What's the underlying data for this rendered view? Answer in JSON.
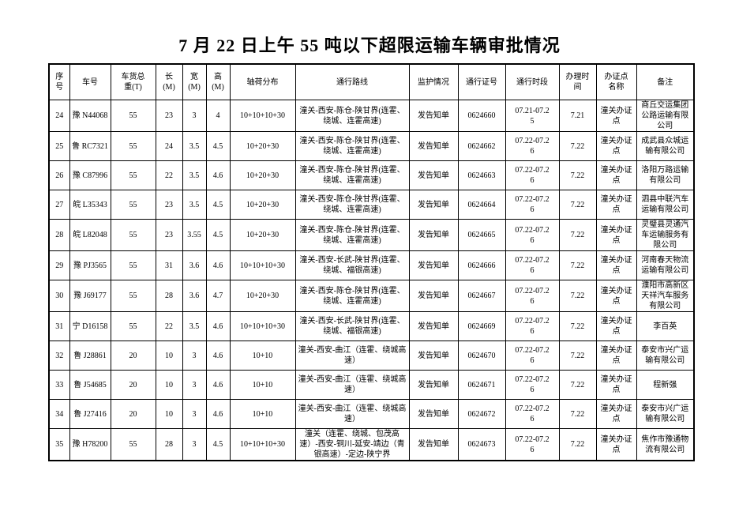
{
  "title": "7 月 22 日上午 55 吨以下超限运输车辆审批情况",
  "table": {
    "headers": [
      "序\n号",
      "车号",
      "车货总\n重(T)",
      "长\n(M)",
      "宽\n(M)",
      "高\n(M)",
      "轴荷分布",
      "通行路线",
      "监护情况",
      "通行证号",
      "通行时段",
      "办理时\n间",
      "办证点\n名称",
      "备注"
    ],
    "rows": [
      [
        "24",
        "豫 N44068",
        "55",
        "23",
        "3",
        "4",
        "10+10+10+30",
        "潼关-西安-陈仓-陕甘界(连霍、绕城、连霍高速)",
        "发告知单",
        "0624660",
        "07.21-07.25",
        "7.21",
        "潼关办证点",
        "商丘交运集团公路运输有限公司"
      ],
      [
        "25",
        "鲁 RC7321",
        "55",
        "24",
        "3.5",
        "4.5",
        "10+20+30",
        "潼关-西安-陈仓-陕甘界(连霍、绕城、连霍高速)",
        "发告知单",
        "0624662",
        "07.22-07.26",
        "7.22",
        "潼关办证点",
        "成武县众城运输有限公司"
      ],
      [
        "26",
        "豫 C87996",
        "55",
        "22",
        "3.5",
        "4.6",
        "10+20+30",
        "潼关-西安-陈仓-陕甘界(连霍、绕城、连霍高速)",
        "发告知单",
        "0624663",
        "07.22-07.26",
        "7.22",
        "潼关办证点",
        "洛阳万路运输有限公司"
      ],
      [
        "27",
        "皖 L35343",
        "55",
        "23",
        "3.5",
        "4.5",
        "10+20+30",
        "潼关-西安-陈仓-陕甘界(连霍、绕城、连霍高速)",
        "发告知单",
        "0624664",
        "07.22-07.26",
        "7.22",
        "潼关办证点",
        "泗县中联汽车运输有限公司"
      ],
      [
        "28",
        "皖 L82048",
        "55",
        "23",
        "3.55",
        "4.5",
        "10+20+30",
        "潼关-西安-陈仓-陕甘界(连霍、绕城、连霍高速)",
        "发告知单",
        "0624665",
        "07.22-07.26",
        "7.22",
        "潼关办证点",
        "灵璧县灵通汽车运输服务有限公司"
      ],
      [
        "29",
        "豫 PJ3565",
        "55",
        "31",
        "3.6",
        "4.6",
        "10+10+10+30",
        "潼关-西安-长武-陕甘界(连霍、绕城、福银高速)",
        "发告知单",
        "0624666",
        "07.22-07.26",
        "7.22",
        "潼关办证点",
        "河南春天物流运输有限公司"
      ],
      [
        "30",
        "豫 J69177",
        "55",
        "28",
        "3.6",
        "4.7",
        "10+20+30",
        "潼关-西安-陈仓-陕甘界(连霍、绕城、连霍高速)",
        "发告知单",
        "0624667",
        "07.22-07.26",
        "7.22",
        "潼关办证点",
        "濮阳市高新区天祥汽车服务有限公司"
      ],
      [
        "31",
        "宁 D16158",
        "55",
        "22",
        "3.5",
        "4.6",
        "10+10+10+30",
        "潼关-西安-长武-陕甘界(连霍、绕城、福银高速)",
        "发告知单",
        "0624669",
        "07.22-07.26",
        "7.22",
        "潼关办证点",
        "李百英"
      ],
      [
        "32",
        "鲁 J28861",
        "20",
        "10",
        "3",
        "4.6",
        "10+10",
        "潼关-西安-曲江（连霍、绕城高速）",
        "发告知单",
        "0624670",
        "07.22-07.26",
        "7.22",
        "潼关办证点",
        "泰安市兴广运输有限公司"
      ],
      [
        "33",
        "鲁 J54685",
        "20",
        "10",
        "3",
        "4.6",
        "10+10",
        "潼关-西安-曲江（连霍、绕城高速）",
        "发告知单",
        "0624671",
        "07.22-07.26",
        "7.22",
        "潼关办证点",
        "程新强"
      ],
      [
        "34",
        "鲁 J27416",
        "20",
        "10",
        "3",
        "4.6",
        "10+10",
        "潼关-西安-曲江（连霍、绕城高速）",
        "发告知单",
        "0624672",
        "07.22-07.26",
        "7.22",
        "潼关办证点",
        "泰安市兴广运输有限公司"
      ],
      [
        "35",
        "豫 H78200",
        "55",
        "28",
        "3",
        "4.5",
        "10+10+10+30",
        "潼关（连霍、绕城、包茂高速）-西安-铜川-延安-靖边（青银高速）-定边-陕宁界",
        "发告知单",
        "0624673",
        "07.22-07.26",
        "7.22",
        "潼关办证点",
        "焦作市豫通物流有限公司"
      ]
    ]
  }
}
